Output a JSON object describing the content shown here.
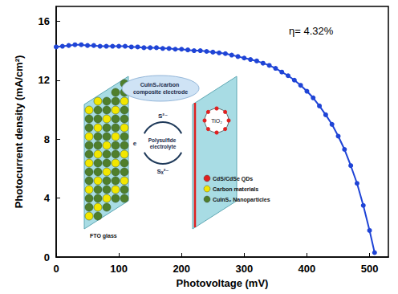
{
  "chart_data": {
    "type": "line",
    "x": [
      0,
      10,
      20,
      30,
      40,
      50,
      60,
      70,
      80,
      90,
      100,
      110,
      120,
      130,
      140,
      150,
      160,
      170,
      180,
      190,
      200,
      210,
      220,
      230,
      240,
      250,
      260,
      270,
      280,
      290,
      300,
      310,
      320,
      330,
      340,
      350,
      360,
      370,
      380,
      390,
      400,
      410,
      420,
      430,
      440,
      450,
      460,
      470,
      480,
      490,
      500,
      508
    ],
    "values": [
      14.25,
      14.3,
      14.35,
      14.4,
      14.4,
      14.35,
      14.35,
      14.3,
      14.3,
      14.3,
      14.3,
      14.3,
      14.25,
      14.25,
      14.2,
      14.2,
      14.2,
      14.15,
      14.15,
      14.1,
      14.1,
      14.05,
      14.0,
      14.0,
      13.95,
      13.9,
      13.85,
      13.8,
      13.7,
      13.6,
      13.5,
      13.4,
      13.3,
      13.15,
      13.0,
      12.8,
      12.55,
      12.3,
      12.0,
      11.65,
      11.25,
      10.8,
      10.25,
      9.65,
      9.0,
      8.2,
      7.3,
      6.2,
      5.0,
      3.5,
      1.8,
      0.3
    ],
    "color": "#1f44d6",
    "marker": "circle",
    "xlabel": "Photovoltage (mV)",
    "ylabel": "Photocurrent density (mA/cm²)",
    "xlim": [
      0,
      530
    ],
    "ylim": [
      0,
      17
    ],
    "xticks": [
      0,
      100,
      200,
      300,
      400,
      500
    ],
    "yticks": [
      0,
      4,
      8,
      12,
      16
    ],
    "grid": false,
    "annotations": [
      "η= 4.32%",
      "CuInS₂/carbon composite electrode",
      "Polysulfide electrolyte",
      "S²⁻",
      "Sₓ²⁻",
      "e",
      "TiO₂",
      "CdS/CdSe QDs",
      "Carbon materials",
      "CuInS₂ Nanoparticles",
      "FTO glass"
    ]
  }
}
